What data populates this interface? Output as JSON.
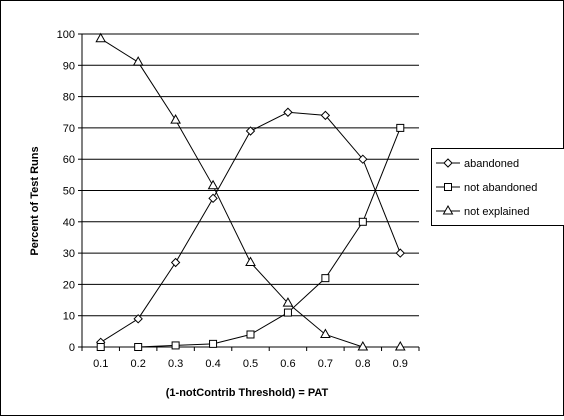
{
  "chart_data": {
    "type": "line",
    "title": "",
    "xlabel": "(1-notContrib Threshold) = PAT",
    "ylabel": "Percent of Test Runs",
    "x": [
      0.1,
      0.2,
      0.3,
      0.4,
      0.5,
      0.6,
      0.7,
      0.8,
      0.9
    ],
    "x_tick_labels": [
      "0.1",
      "0.2",
      "0.3",
      "0.4",
      "0.5",
      "0.6",
      "0.7",
      "0.8",
      "0.9"
    ],
    "ylim": [
      0,
      100
    ],
    "y_tick_labels": [
      "0",
      "10",
      "20",
      "30",
      "40",
      "50",
      "60",
      "70",
      "80",
      "90",
      "100"
    ],
    "grid": "horizontal",
    "legend_position": "right",
    "series": [
      {
        "name": "abandoned",
        "marker": "diamond",
        "values": [
          1.5,
          9,
          27,
          47.5,
          69,
          75,
          74,
          60,
          30
        ]
      },
      {
        "name": "not abandoned",
        "marker": "square",
        "values": [
          0,
          0,
          0.5,
          1,
          4,
          11,
          22,
          40,
          70
        ]
      },
      {
        "name": "not explained",
        "marker": "triangle",
        "values": [
          98.5,
          91,
          72.5,
          51.5,
          27,
          14,
          4,
          0,
          0
        ]
      }
    ],
    "colors": {
      "line": "#000000",
      "marker_fill": "#ffffff",
      "grid": "#000000",
      "background": "#ffffff"
    }
  }
}
